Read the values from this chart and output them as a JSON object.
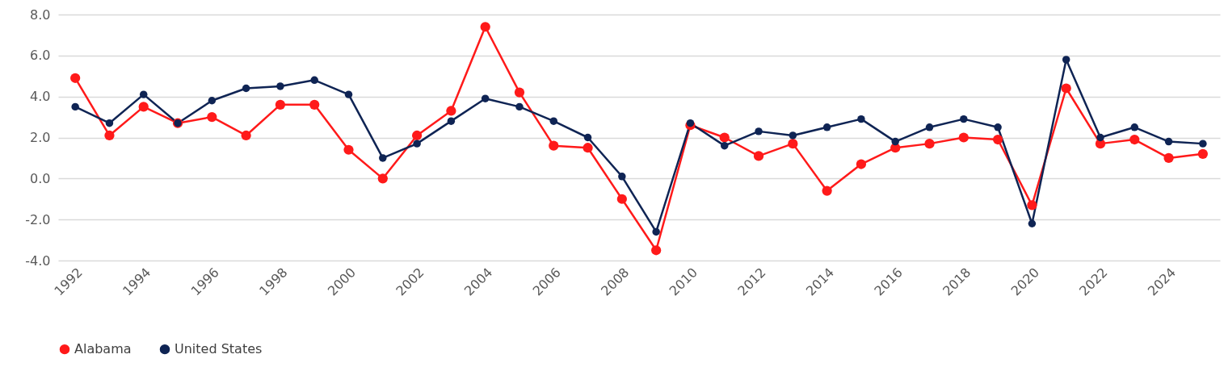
{
  "chart_data": {
    "type": "line",
    "x": [
      1992,
      1993,
      1994,
      1995,
      1996,
      1997,
      1998,
      1999,
      2000,
      2001,
      2002,
      2003,
      2004,
      2005,
      2006,
      2007,
      2008,
      2009,
      2010,
      2011,
      2012,
      2013,
      2014,
      2015,
      2016,
      2017,
      2018,
      2019,
      2020,
      2021,
      2022,
      2023,
      2024,
      2025
    ],
    "series": [
      {
        "name": "Alabama",
        "color": "#ff1a1a",
        "values": [
          4.9,
          2.1,
          3.5,
          2.7,
          3.0,
          2.1,
          3.6,
          3.6,
          1.4,
          0.0,
          2.1,
          3.3,
          7.4,
          4.2,
          1.6,
          1.5,
          -1.0,
          -3.5,
          2.6,
          2.0,
          1.1,
          1.7,
          -0.6,
          0.7,
          1.5,
          1.7,
          2.0,
          1.9,
          -1.3,
          4.4,
          1.7,
          1.9,
          1.0,
          1.2
        ]
      },
      {
        "name": "United States",
        "color": "#0f2454",
        "values": [
          3.5,
          2.7,
          4.1,
          2.7,
          3.8,
          4.4,
          4.5,
          4.8,
          4.1,
          1.0,
          1.7,
          2.8,
          3.9,
          3.5,
          2.8,
          2.0,
          0.1,
          -2.6,
          2.7,
          1.6,
          2.3,
          2.1,
          2.5,
          2.9,
          1.8,
          2.5,
          2.9,
          2.5,
          -2.2,
          5.8,
          2.0,
          2.5,
          1.8,
          1.7
        ]
      }
    ],
    "xlim": [
      1991.5,
      2025.5
    ],
    "xticks": [
      1992,
      1994,
      1996,
      1998,
      2000,
      2002,
      2004,
      2006,
      2008,
      2010,
      2012,
      2014,
      2016,
      2018,
      2020,
      2022,
      2024
    ],
    "ylim": [
      -4,
      8
    ],
    "yticks": [
      {
        "value": -4,
        "label": "-4.0"
      },
      {
        "value": -2,
        "label": "-2.0"
      },
      {
        "value": 0,
        "label": "0.0"
      },
      {
        "value": 2,
        "label": "2.0"
      },
      {
        "value": 4,
        "label": "4.0"
      },
      {
        "value": 6,
        "label": "6.0"
      },
      {
        "value": 8,
        "label": "8.0"
      }
    ],
    "grid": "y",
    "legend": "bottom",
    "marker": "circle",
    "line_style": "solid"
  }
}
